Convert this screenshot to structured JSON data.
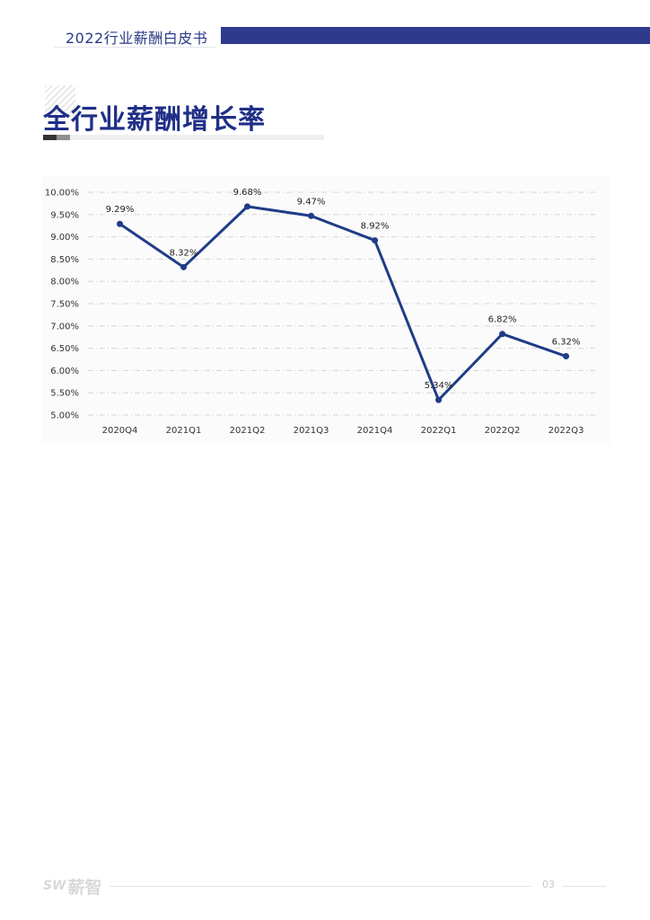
{
  "header": {
    "title": "2022行业薪酬白皮书"
  },
  "section": {
    "title": "全行业薪酬增长率"
  },
  "footer": {
    "logo_mark": "SW",
    "logo_text": "薪智",
    "page_number": "03"
  },
  "colors": {
    "brand": "#2e3a8c",
    "line": "#1f3c88",
    "title": "#1f2f87"
  },
  "chart_data": {
    "type": "line",
    "categories": [
      "2020Q4",
      "2021Q1",
      "2021Q2",
      "2021Q3",
      "2021Q4",
      "2022Q1",
      "2022Q2",
      "2022Q3"
    ],
    "values": [
      9.29,
      8.32,
      9.68,
      9.47,
      8.92,
      5.34,
      6.82,
      6.32
    ],
    "data_labels": [
      "9.29%",
      "8.32%",
      "9.68%",
      "9.47%",
      "8.92%",
      "5.34%",
      "6.82%",
      "6.32%"
    ],
    "y_ticks": [
      "5.00%",
      "5.50%",
      "6.00%",
      "6.50%",
      "7.00%",
      "7.50%",
      "8.00%",
      "8.50%",
      "9.00%",
      "9.50%",
      "10.00%"
    ],
    "ylim": [
      5.0,
      10.0
    ],
    "grid": true,
    "legend": "none"
  }
}
